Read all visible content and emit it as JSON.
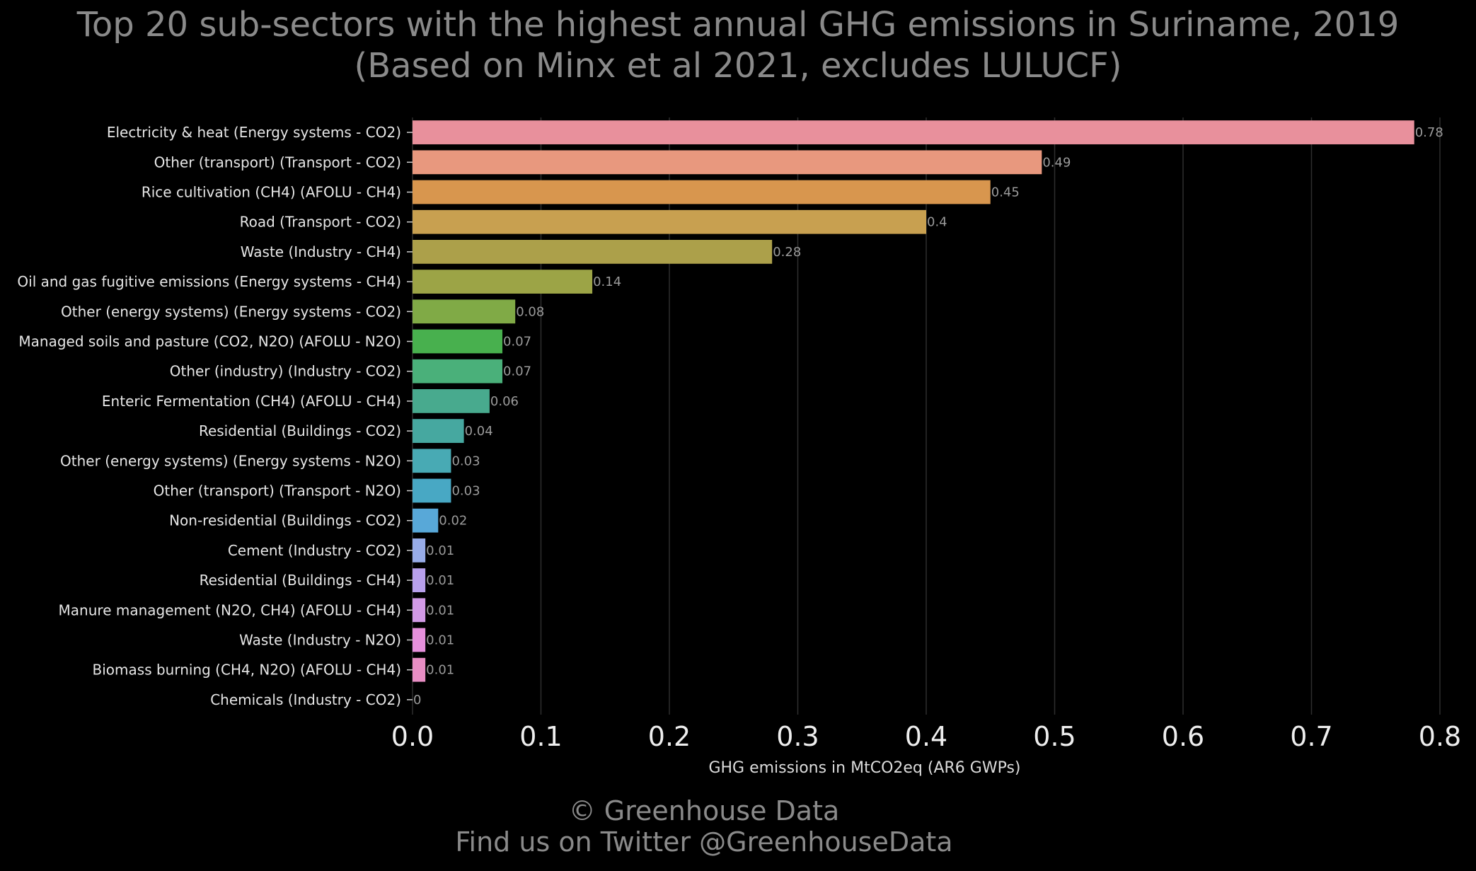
{
  "title": {
    "line1": "Top 20 sub-sectors with the highest annual GHG emissions in Suriname, 2019",
    "line2": "(Based on Minx et al 2021, excludes LULUCF)"
  },
  "footer": {
    "line1": "© Greenhouse Data",
    "line2": "Find us on Twitter @GreenhouseData"
  },
  "chart_data": {
    "type": "bar",
    "orientation": "horizontal",
    "xlabel": "GHG emissions in MtCO2eq (AR6 GWPs)",
    "xlim": [
      0,
      0.8
    ],
    "xticks": [
      "0.0",
      "0.1",
      "0.2",
      "0.3",
      "0.4",
      "0.5",
      "0.6",
      "0.7",
      "0.8"
    ],
    "grid": "vertical",
    "categories": [
      "Electricity & heat (Energy systems - CO2)",
      "Other (transport) (Transport - CO2)",
      "Rice cultivation (CH4) (AFOLU - CH4)",
      "Road (Transport - CO2)",
      "Waste (Industry - CH4)",
      "Oil and gas fugitive emissions (Energy systems - CH4)",
      "Other (energy systems) (Energy systems - CO2)",
      "Managed soils and pasture (CO2, N2O) (AFOLU - N2O)",
      "Other (industry) (Industry - CO2)",
      "Enteric Fermentation (CH4) (AFOLU - CH4)",
      "Residential (Buildings - CO2)",
      "Other (energy systems) (Energy systems - N2O)",
      "Other (transport) (Transport - N2O)",
      "Non-residential (Buildings - CO2)",
      "Cement (Industry - CO2)",
      "Residential (Buildings - CH4)",
      "Manure management (N2O, CH4) (AFOLU - CH4)",
      "Waste (Industry - N2O)",
      "Biomass burning (CH4, N2O) (AFOLU - CH4)",
      "Chemicals (Industry - CO2)"
    ],
    "values": [
      0.78,
      0.49,
      0.45,
      0.4,
      0.28,
      0.14,
      0.08,
      0.07,
      0.07,
      0.06,
      0.04,
      0.03,
      0.03,
      0.02,
      0.01,
      0.01,
      0.01,
      0.01,
      0.01,
      0
    ],
    "value_labels": [
      "0.78",
      "0.49",
      "0.45",
      "0.4",
      "0.28",
      "0.14",
      "0.08",
      "0.07",
      "0.07",
      "0.06",
      "0.04",
      "0.03",
      "0.03",
      "0.02",
      "0.01",
      "0.01",
      "0.01",
      "0.01",
      "0.01",
      "0"
    ],
    "colors": [
      "#e8909c",
      "#e8987e",
      "#d8964e",
      "#c8a050",
      "#aca04a",
      "#9ca446",
      "#80aa46",
      "#48b04e",
      "#4ab07a",
      "#48aa8e",
      "#46a8a0",
      "#48aab4",
      "#48a8c4",
      "#58a8d8",
      "#98ace8",
      "#b8a0ec",
      "#d29ae6",
      "#e690dc",
      "#e88ec4",
      "#e890b0"
    ]
  }
}
